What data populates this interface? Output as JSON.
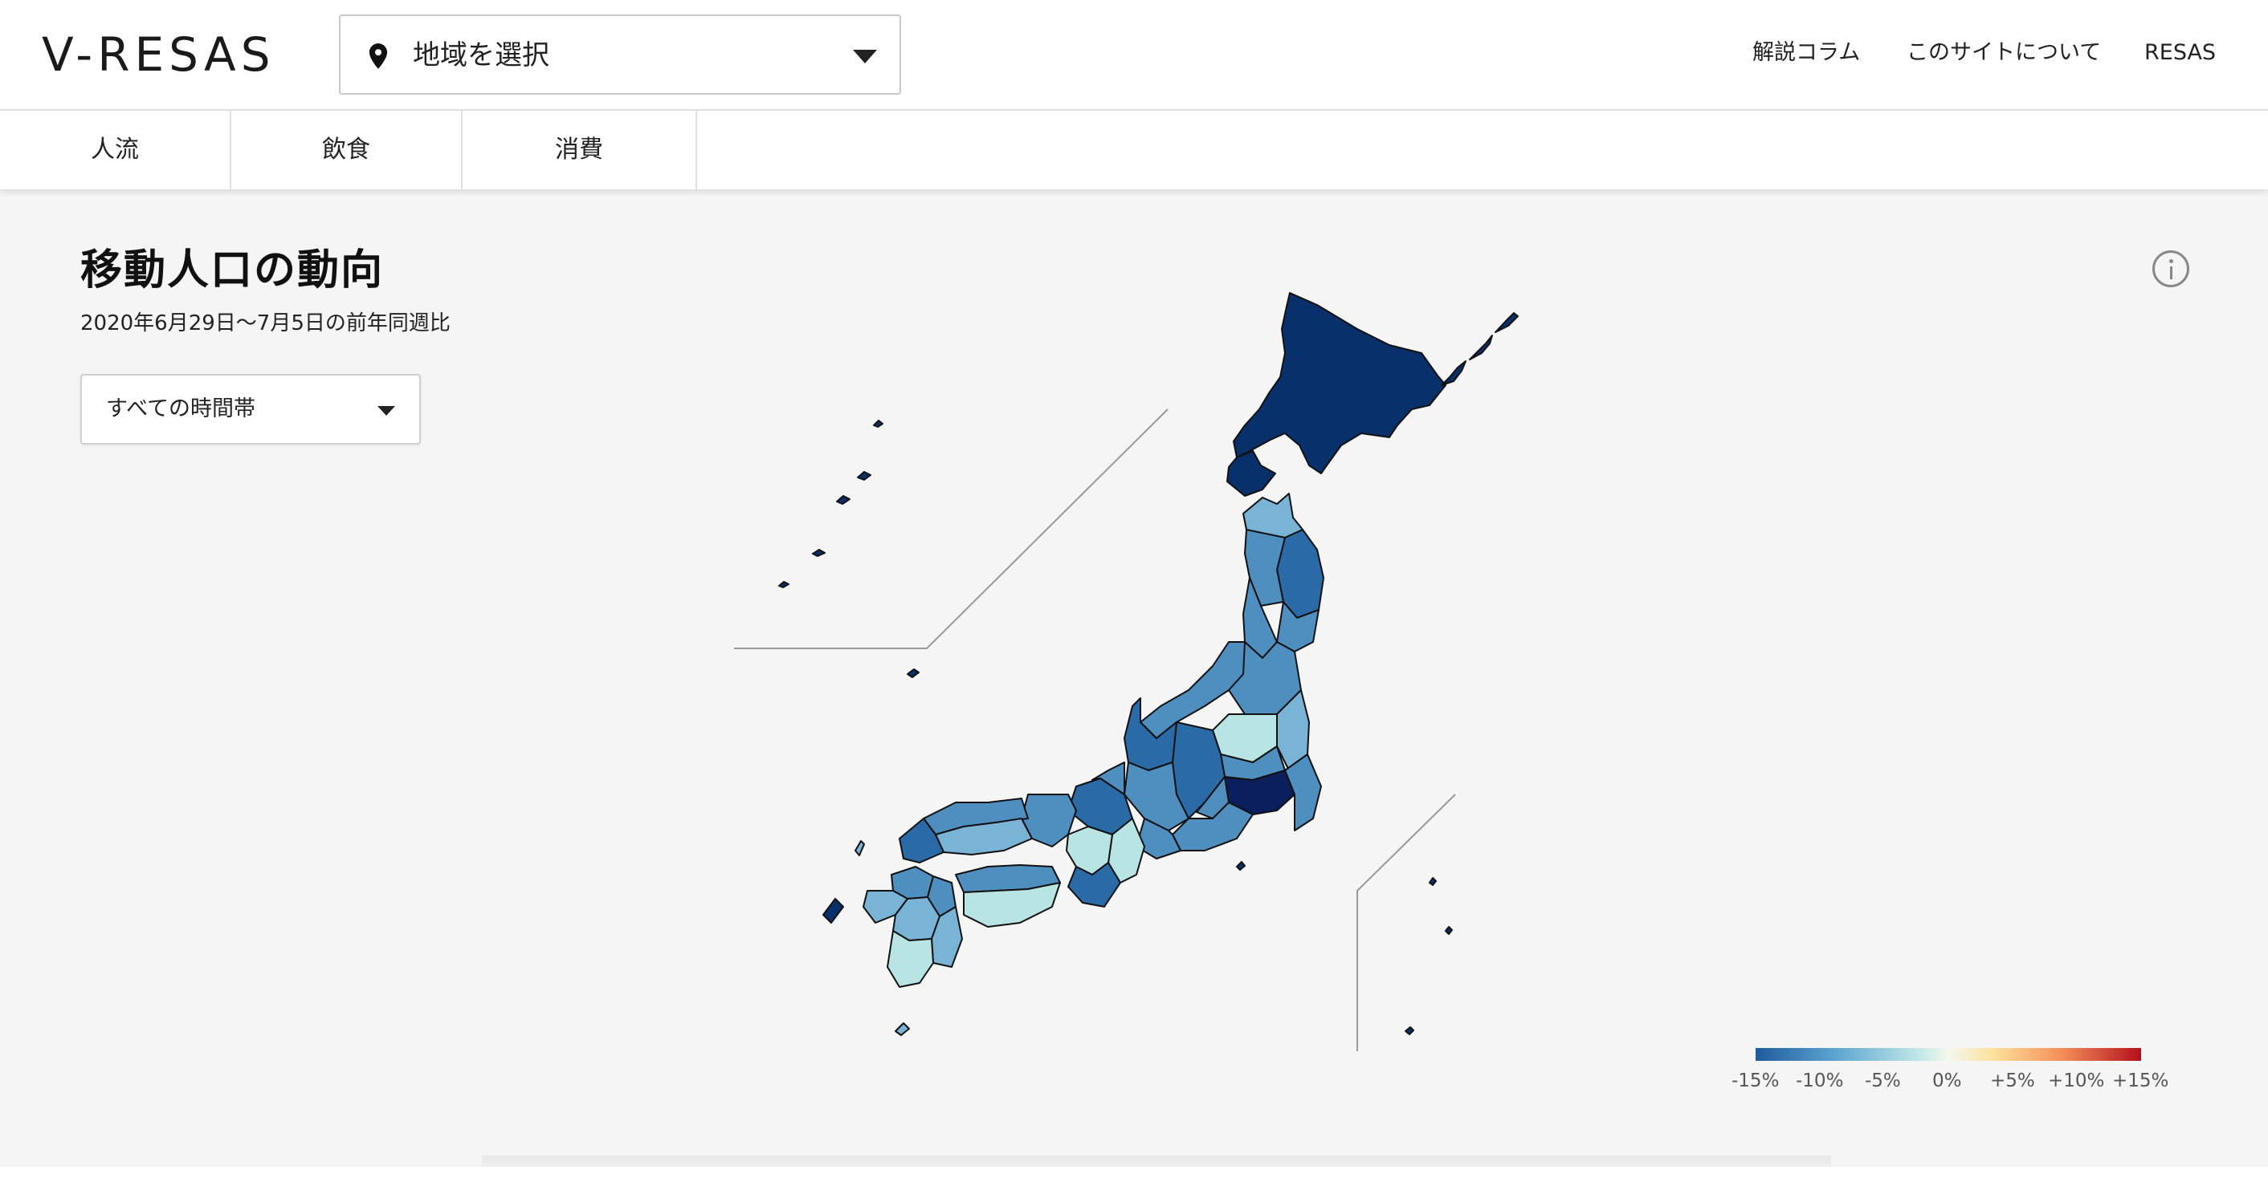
{
  "header": {
    "logo": "V-RESAS",
    "region_select": {
      "label": "地域を選択",
      "icon": "map-pin-icon"
    },
    "nav": [
      "解説コラム",
      "このサイトについて",
      "RESAS"
    ]
  },
  "tabs": [
    "人流",
    "飲食",
    "消費"
  ],
  "main": {
    "title": "移動人口の動向",
    "subtitle": "2020年6月29日〜7月5日の前年同週比",
    "time_select": {
      "value": "すべての時間帯"
    },
    "info_icon": "info-icon"
  },
  "legend": {
    "labels": [
      "-15%",
      "-10%",
      "-5%",
      "0%",
      "+5%",
      "+10%",
      "+15%"
    ],
    "colors": [
      "#1f5a9d",
      "#5aa3cf",
      "#bfe6e7",
      "#f3f8ee",
      "#fde19a",
      "#f38b57",
      "#b50f1d"
    ]
  },
  "map_colors": {
    "darkest": "#0b1f5c",
    "dark": "#08306b",
    "mid_dark": "#2a6aa6",
    "mid": "#4f8fc0",
    "light": "#79b3d6",
    "lightest": "#b9e4e4"
  }
}
